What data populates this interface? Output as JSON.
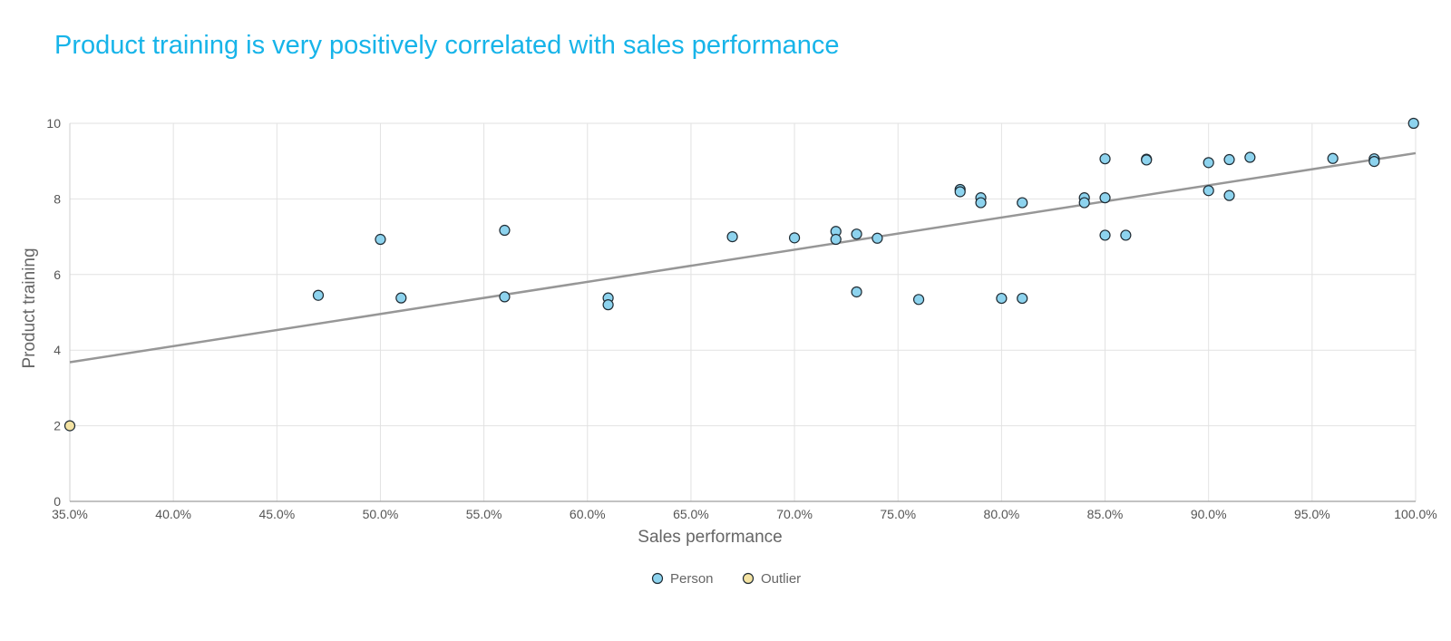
{
  "chart_data": {
    "type": "scatter",
    "title": "Product training is very positively correlated with sales performance",
    "xlabel": "Sales performance",
    "ylabel": "Product training",
    "xlim": [
      0.35,
      1.0
    ],
    "ylim": [
      0,
      10
    ],
    "x_ticks": [
      {
        "value": 0.35,
        "label": "35.0%"
      },
      {
        "value": 0.4,
        "label": "40.0%"
      },
      {
        "value": 0.45,
        "label": "45.0%"
      },
      {
        "value": 0.5,
        "label": "50.0%"
      },
      {
        "value": 0.55,
        "label": "55.0%"
      },
      {
        "value": 0.6,
        "label": "60.0%"
      },
      {
        "value": 0.65,
        "label": "65.0%"
      },
      {
        "value": 0.7,
        "label": "70.0%"
      },
      {
        "value": 0.75,
        "label": "75.0%"
      },
      {
        "value": 0.8,
        "label": "80.0%"
      },
      {
        "value": 0.85,
        "label": "85.0%"
      },
      {
        "value": 0.9,
        "label": "90.0%"
      },
      {
        "value": 0.95,
        "label": "95.0%"
      },
      {
        "value": 1.0,
        "label": "100.0%"
      }
    ],
    "y_ticks": [
      {
        "value": 0,
        "label": "0"
      },
      {
        "value": 2,
        "label": "2"
      },
      {
        "value": 4,
        "label": "4"
      },
      {
        "value": 6,
        "label": "6"
      },
      {
        "value": 8,
        "label": "8"
      },
      {
        "value": 10,
        "label": "10"
      }
    ],
    "grid": true,
    "legend_position": "bottom",
    "series": [
      {
        "name": "Person",
        "color": "#8dd3ee",
        "points": [
          [
            0.47,
            5.45
          ],
          [
            0.5,
            6.93
          ],
          [
            0.51,
            5.38
          ],
          [
            0.56,
            7.17
          ],
          [
            0.56,
            5.41
          ],
          [
            0.61,
            5.38
          ],
          [
            0.61,
            5.2
          ],
          [
            0.67,
            7.0
          ],
          [
            0.7,
            6.97
          ],
          [
            0.72,
            7.14
          ],
          [
            0.72,
            6.93
          ],
          [
            0.73,
            7.07
          ],
          [
            0.73,
            5.54
          ],
          [
            0.74,
            6.96
          ],
          [
            0.76,
            5.34
          ],
          [
            0.78,
            8.25
          ],
          [
            0.78,
            8.19
          ],
          [
            0.79,
            8.03
          ],
          [
            0.79,
            7.9
          ],
          [
            0.8,
            5.37
          ],
          [
            0.81,
            5.37
          ],
          [
            0.81,
            7.9
          ],
          [
            0.84,
            8.03
          ],
          [
            0.84,
            7.9
          ],
          [
            0.85,
            9.06
          ],
          [
            0.85,
            8.03
          ],
          [
            0.85,
            7.04
          ],
          [
            0.86,
            7.04
          ],
          [
            0.87,
            9.05
          ],
          [
            0.87,
            9.03
          ],
          [
            0.9,
            8.96
          ],
          [
            0.9,
            8.22
          ],
          [
            0.91,
            9.04
          ],
          [
            0.91,
            8.09
          ],
          [
            0.92,
            9.1
          ],
          [
            0.96,
            9.07
          ],
          [
            0.98,
            9.06
          ],
          [
            0.98,
            8.99
          ],
          [
            0.999,
            10.0
          ]
        ]
      },
      {
        "name": "Outlier",
        "color": "#f4e3a3",
        "points": [
          [
            0.35,
            2.0
          ]
        ]
      }
    ],
    "trendline": {
      "color": "#979797",
      "from": [
        0.35,
        3.68
      ],
      "to": [
        1.0,
        9.21
      ]
    }
  },
  "colors": {
    "title": "#17b4e9",
    "point_stroke": "#1f2b33",
    "grid": "#e2e2e2",
    "tick_text": "#555555"
  }
}
